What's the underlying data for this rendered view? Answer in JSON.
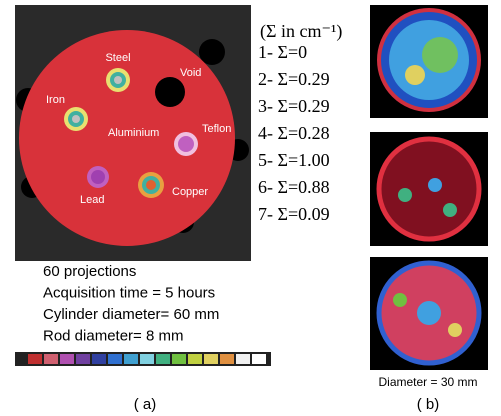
{
  "panel_a": {
    "materials": [
      "Steel",
      "Void",
      "Iron",
      "Aluminium",
      "Teflon",
      "Lead",
      "Copper"
    ],
    "legend_title": "(Σ in cm⁻¹)",
    "legend_items": [
      "1- Σ=0",
      "2- Σ=0.29",
      "3- Σ=0.29",
      "4- Σ=0.28",
      "5- Σ=1.00",
      "6- Σ=0.88",
      "7- Σ=0.09"
    ],
    "info": [
      "60 projections",
      "Acquisition time = 5 hours",
      "Cylinder diameter= 60 mm",
      "Rod diameter= 8 mm"
    ],
    "caption": "( a)"
  },
  "panel_b": {
    "note": "Diameter = 30 mm",
    "caption": "( b)"
  }
}
